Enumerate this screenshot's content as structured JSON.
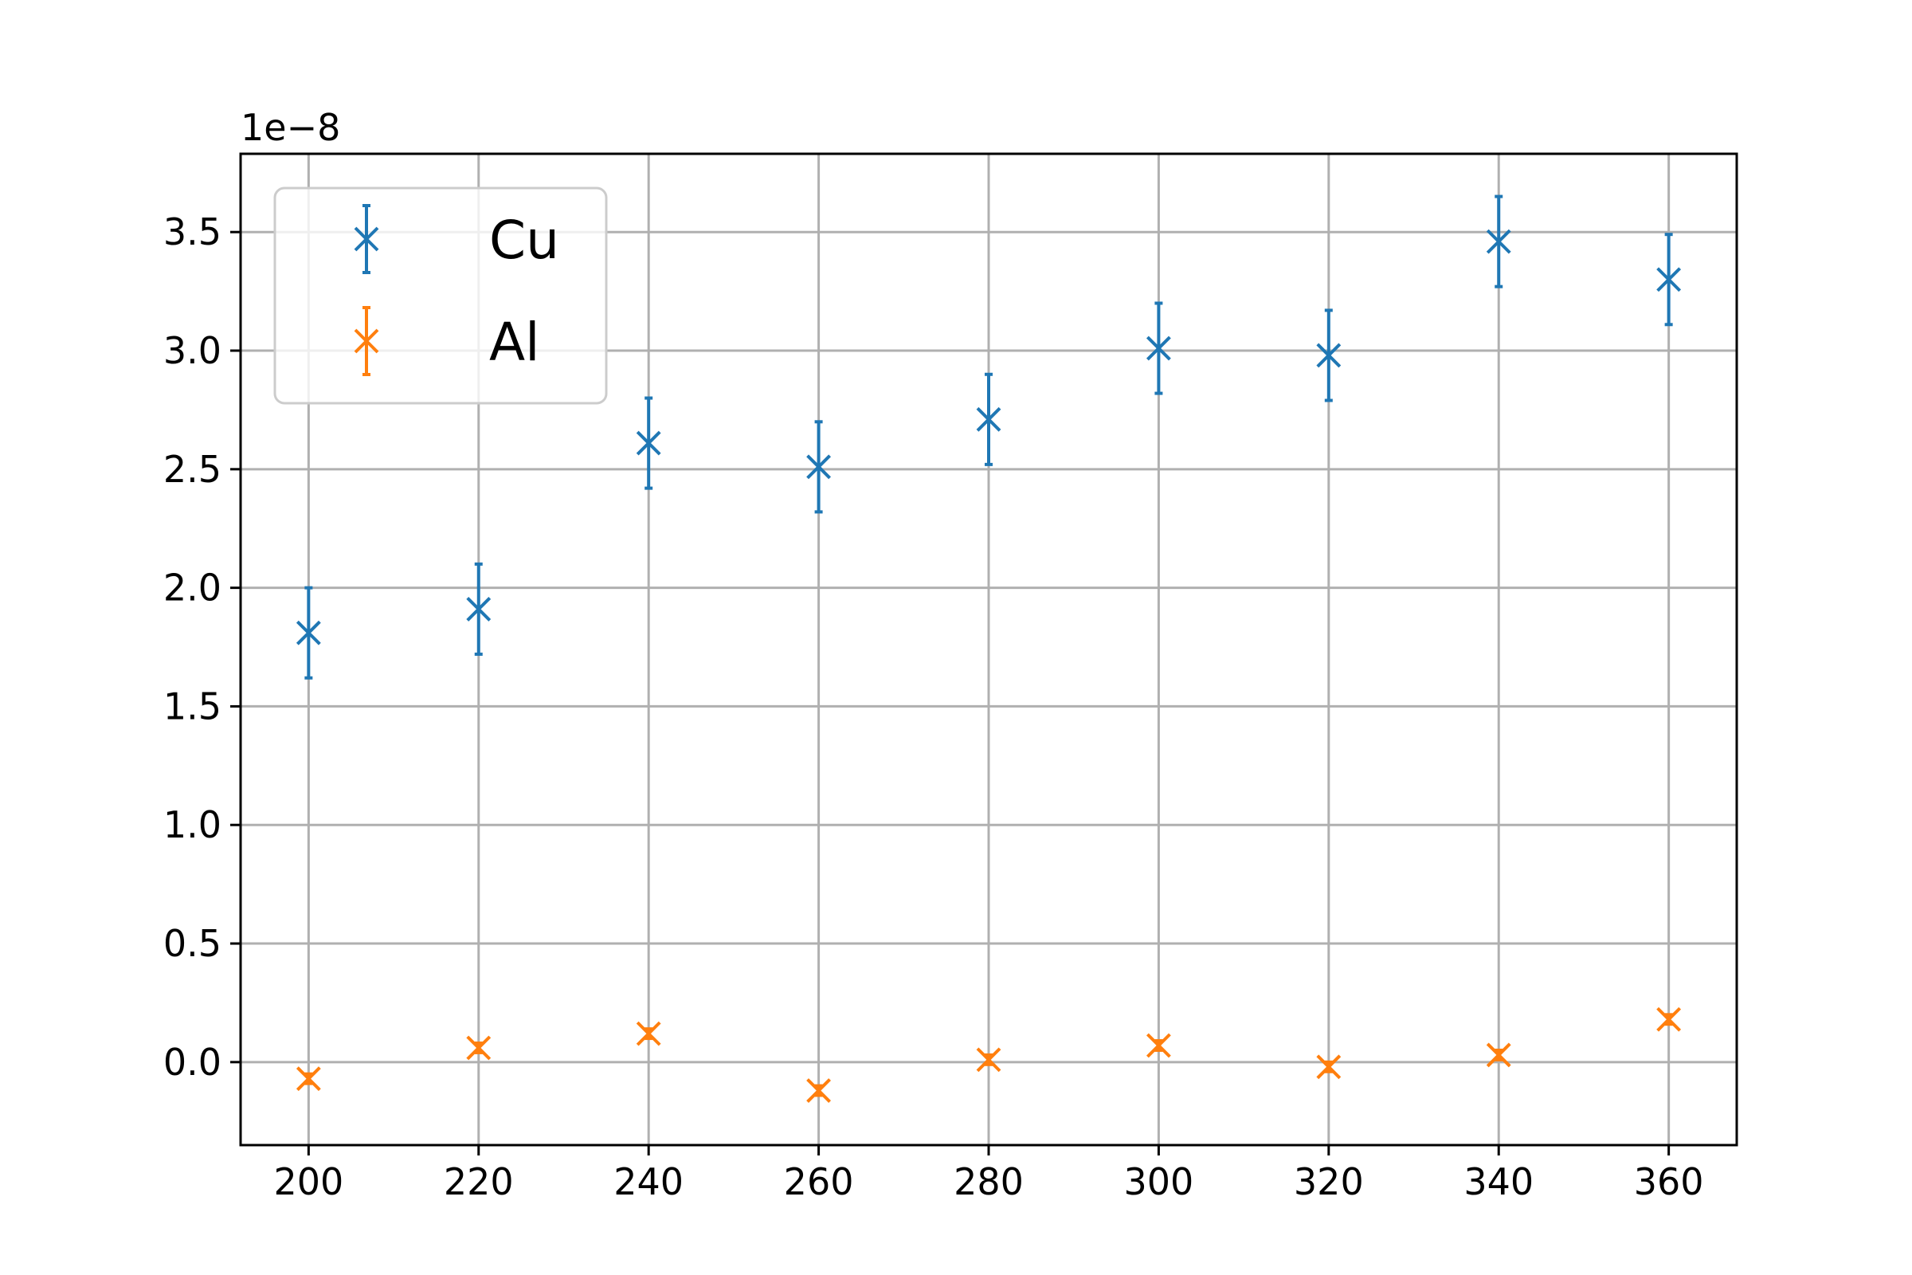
{
  "chart_data": {
    "type": "scatter",
    "title": "",
    "xlabel": "",
    "ylabel": "",
    "y_offset_label": "1e−8",
    "xlim": [
      192,
      368
    ],
    "ylim": [
      -0.35,
      3.83
    ],
    "y_scale_factor": 1e-08,
    "x_ticks": [
      200,
      220,
      240,
      260,
      280,
      300,
      320,
      340,
      360
    ],
    "y_ticks": [
      0.0,
      0.5,
      1.0,
      1.5,
      2.0,
      2.5,
      3.0,
      3.5
    ],
    "x_tick_labels": [
      "200",
      "220",
      "240",
      "260",
      "280",
      "300",
      "320",
      "340",
      "360"
    ],
    "y_tick_labels": [
      "0.0",
      "0.5",
      "1.0",
      "1.5",
      "2.0",
      "2.5",
      "3.0",
      "3.5"
    ],
    "grid": true,
    "legend_position": "top-left",
    "marker": "x",
    "series": [
      {
        "name": "Cu",
        "color": "#1f77b4",
        "x": [
          200,
          220,
          240,
          260,
          280,
          300,
          320,
          340,
          360
        ],
        "y": [
          1.81,
          1.91,
          2.61,
          2.51,
          2.71,
          3.01,
          2.98,
          3.46,
          3.3
        ],
        "yerr": [
          0.19,
          0.19,
          0.19,
          0.19,
          0.19,
          0.19,
          0.19,
          0.19,
          0.19
        ]
      },
      {
        "name": "Al",
        "color": "#ff7f0e",
        "x": [
          200,
          220,
          240,
          260,
          280,
          300,
          320,
          340,
          360
        ],
        "y": [
          -0.07,
          0.06,
          0.12,
          -0.12,
          0.01,
          0.07,
          -0.02,
          0.03,
          0.18
        ],
        "yerr": [
          0.02,
          0.02,
          0.02,
          0.02,
          0.02,
          0.02,
          0.02,
          0.02,
          0.02
        ]
      }
    ]
  }
}
